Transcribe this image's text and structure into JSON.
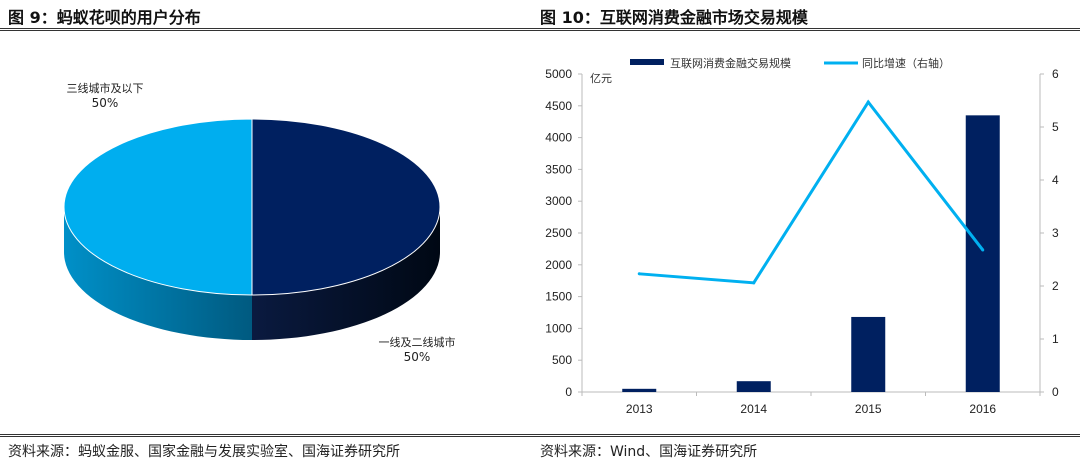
{
  "left": {
    "title": "图 9：蚂蚁花呗的用户分布",
    "source": "资料来源：蚂蚁金服、国家金融与发展实验室、国海证券研究所",
    "chart_data": {
      "type": "pie",
      "style": "3d",
      "slices": [
        {
          "label": "一线及二线城市",
          "value": 50,
          "pct_label": "50%",
          "color": "#002060"
        },
        {
          "label": "三线城市及以下",
          "value": 50,
          "pct_label": "50%",
          "color": "#00AEEF"
        }
      ]
    }
  },
  "right": {
    "title": "图 10：互联网消费金融市场交易规模",
    "source": "资料来源：Wind、国海证券研究所",
    "chart_data": {
      "type": "bar",
      "categories": [
        "2013",
        "2014",
        "2015",
        "2016"
      ],
      "series": [
        {
          "name": "互联网消费金融交易规模",
          "type": "bar",
          "axis": "left",
          "color": "#002060",
          "values": [
            50,
            170,
            1180,
            4350
          ]
        },
        {
          "name": "同比增速（右轴）",
          "type": "line",
          "axis": "right",
          "color": "#00B0F0",
          "values": [
            2.23,
            2.06,
            5.47,
            2.68
          ]
        }
      ],
      "ylabel": "亿元",
      "ylim": [
        0,
        5000
      ],
      "yticks": [
        "0",
        "500",
        "1000",
        "1500",
        "2000",
        "2500",
        "3000",
        "3500",
        "4000",
        "4500",
        "5000"
      ],
      "y2lim": [
        0,
        6
      ],
      "y2ticks": [
        "0",
        "1",
        "2",
        "3",
        "4",
        "5",
        "6"
      ],
      "legend": "top"
    }
  }
}
